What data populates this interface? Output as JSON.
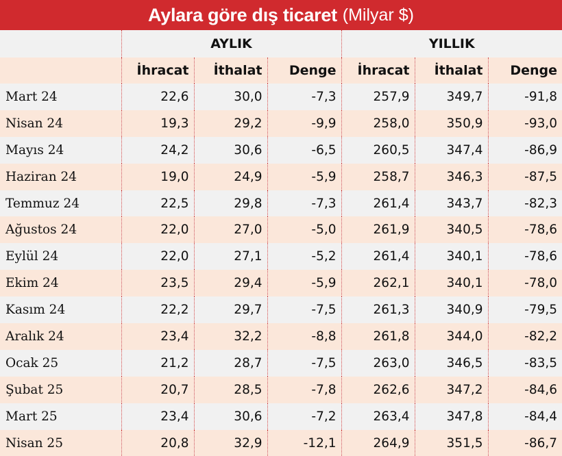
{
  "title": "Aylara göre dış ticaret",
  "subtitle": "(Milyar $)",
  "colors": {
    "header_bg": "#d02a2e",
    "row_shade": "#fbe7da",
    "row_plain": "#f1f1f1",
    "divider": "#c83a3a"
  },
  "chart_data": {
    "type": "table",
    "groups": [
      "AYLIK",
      "YILLIK"
    ],
    "columns": [
      "İhracat",
      "İthalat",
      "Denge",
      "İhracat",
      "İthalat",
      "Denge"
    ],
    "rows": [
      {
        "month": "Mart 24",
        "values": [
          "22,6",
          "30,0",
          "-7,3",
          "257,9",
          "349,7",
          "-91,8"
        ]
      },
      {
        "month": "Nisan 24",
        "values": [
          "19,3",
          "29,2",
          "-9,9",
          "258,0",
          "350,9",
          "-93,0"
        ]
      },
      {
        "month": "Mayıs 24",
        "values": [
          "24,2",
          "30,6",
          "-6,5",
          "260,5",
          "347,4",
          "-86,9"
        ]
      },
      {
        "month": "Haziran 24",
        "values": [
          "19,0",
          "24,9",
          "-5,9",
          "258,7",
          "346,3",
          "-87,5"
        ]
      },
      {
        "month": "Temmuz 24",
        "values": [
          "22,5",
          "29,8",
          "-7,3",
          "261,4",
          "343,7",
          "-82,3"
        ]
      },
      {
        "month": "Ağustos 24",
        "values": [
          "22,0",
          "27,0",
          "-5,0",
          "261,9",
          "340,5",
          "-78,6"
        ]
      },
      {
        "month": "Eylül 24",
        "values": [
          "22,0",
          "27,1",
          "-5,2",
          "261,4",
          "340,1",
          "-78,6"
        ]
      },
      {
        "month": "Ekim 24",
        "values": [
          "23,5",
          "29,4",
          "-5,9",
          "262,1",
          "340,1",
          "-78,0"
        ]
      },
      {
        "month": "Kasım 24",
        "values": [
          "22,2",
          "29,7",
          "-7,5",
          "261,3",
          "340,9",
          "-79,5"
        ]
      },
      {
        "month": "Aralık 24",
        "values": [
          "23,4",
          "32,2",
          "-8,8",
          "261,8",
          "344,0",
          "-82,2"
        ]
      },
      {
        "month": "Ocak 25",
        "values": [
          "21,2",
          "28,7",
          "-7,5",
          "263,0",
          "346,5",
          "-83,5"
        ]
      },
      {
        "month": "Şubat 25",
        "values": [
          "20,7",
          "28,5",
          "-7,8",
          "262,6",
          "347,2",
          "-84,6"
        ]
      },
      {
        "month": "Mart 25",
        "values": [
          "23,4",
          "30,6",
          "-7,2",
          "263,4",
          "347,8",
          "-84,4"
        ]
      },
      {
        "month": "Nisan 25",
        "values": [
          "20,8",
          "32,9",
          "-12,1",
          "264,9",
          "351,5",
          "-86,7"
        ]
      }
    ]
  }
}
